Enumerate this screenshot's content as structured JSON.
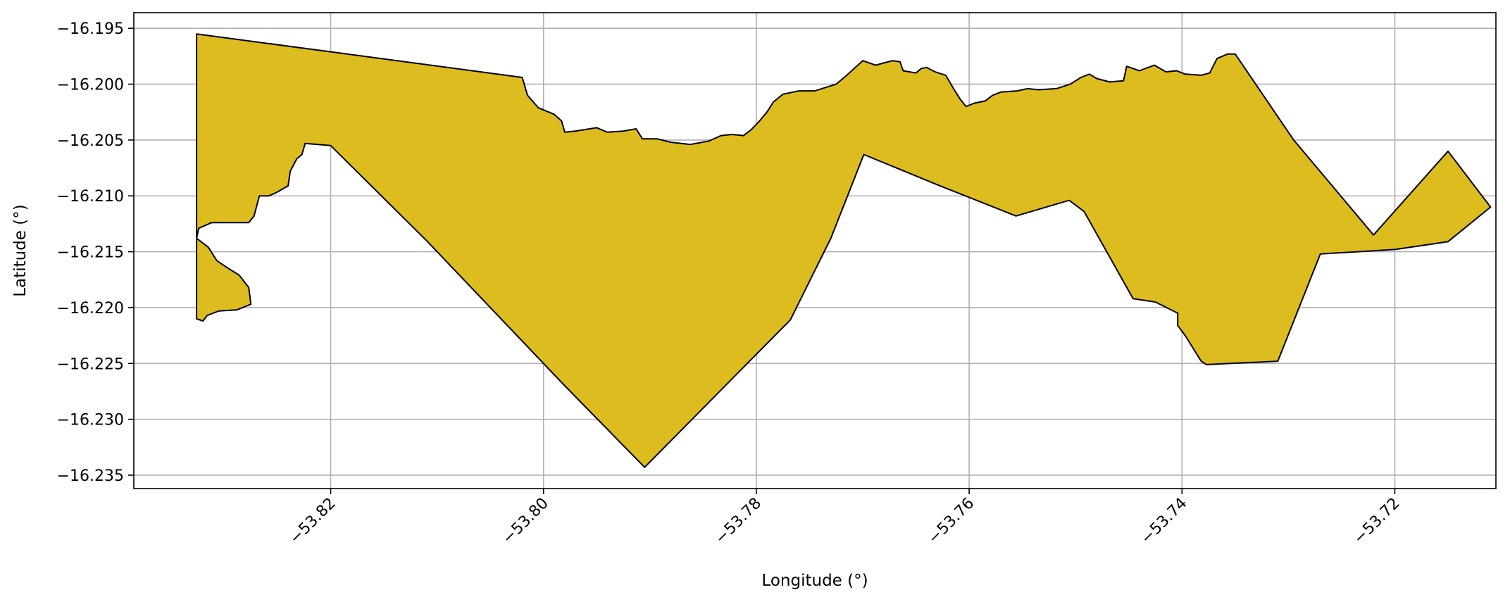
{
  "chart_data": {
    "type": "area",
    "title": "",
    "xlabel": "Longitude (°)",
    "ylabel": "Latitude (°)",
    "xlim": [
      -53.8385,
      -53.7105
    ],
    "ylim": [
      -16.2362,
      -16.1936
    ],
    "xticks": [
      -53.82,
      -53.8,
      -53.78,
      -53.76,
      -53.74,
      -53.72
    ],
    "xtick_labels": [
      "−53.82",
      "−53.80",
      "−53.78",
      "−53.76",
      "−53.74",
      "−53.72"
    ],
    "yticks": [
      -16.195,
      -16.2,
      -16.205,
      -16.21,
      -16.215,
      -16.22,
      -16.225,
      -16.23,
      -16.235
    ],
    "ytick_labels": [
      "−16.195",
      "−16.200",
      "−16.205",
      "−16.210",
      "−16.215",
      "−16.220",
      "−16.225",
      "−16.230",
      "−16.235"
    ],
    "grid": true,
    "fill_color": "#DDBC20",
    "edge_color": "#000000",
    "polygon": [
      [
        -53.8326,
        -16.1955
      ],
      [
        -53.802,
        -16.1994
      ],
      [
        -53.8015,
        -16.201
      ],
      [
        -53.8005,
        -16.2021
      ],
      [
        -53.799,
        -16.2027
      ],
      [
        -53.7983,
        -16.2033
      ],
      [
        -53.798,
        -16.2043
      ],
      [
        -53.797,
        -16.2042
      ],
      [
        -53.795,
        -16.2039
      ],
      [
        -53.794,
        -16.2043
      ],
      [
        -53.7925,
        -16.2042
      ],
      [
        -53.7913,
        -16.204
      ],
      [
        -53.7907,
        -16.2049
      ],
      [
        -53.7893,
        -16.2049
      ],
      [
        -53.788,
        -16.2052
      ],
      [
        -53.7862,
        -16.2054
      ],
      [
        -53.7845,
        -16.2051
      ],
      [
        -53.7833,
        -16.2046
      ],
      [
        -53.7823,
        -16.2045
      ],
      [
        -53.7812,
        -16.2046
      ],
      [
        -53.7805,
        -16.2041
      ],
      [
        -53.7797,
        -16.2033
      ],
      [
        -53.779,
        -16.2025
      ],
      [
        -53.7784,
        -16.2016
      ],
      [
        -53.7775,
        -16.2009
      ],
      [
        -53.776,
        -16.2006
      ],
      [
        -53.7745,
        -16.2006
      ],
      [
        -53.7725,
        -16.2
      ],
      [
        -53.7715,
        -16.1992
      ],
      [
        -53.7707,
        -16.1985
      ],
      [
        -53.77,
        -16.1979
      ],
      [
        -53.7688,
        -16.1983
      ],
      [
        -53.768,
        -16.1981
      ],
      [
        -53.7672,
        -16.1979
      ],
      [
        -53.7665,
        -16.198
      ],
      [
        -53.7662,
        -16.1988
      ],
      [
        -53.765,
        -16.199
      ],
      [
        -53.7645,
        -16.1986
      ],
      [
        -53.764,
        -16.1985
      ],
      [
        -53.7632,
        -16.1989
      ],
      [
        -53.7622,
        -16.1992
      ],
      [
        -53.7614,
        -16.2005
      ],
      [
        -53.7608,
        -16.2014
      ],
      [
        -53.7603,
        -16.202
      ],
      [
        -53.7595,
        -16.2017
      ],
      [
        -53.7585,
        -16.2015
      ],
      [
        -53.7578,
        -16.201
      ],
      [
        -53.757,
        -16.2007
      ],
      [
        -53.7555,
        -16.2006
      ],
      [
        -53.7545,
        -16.2004
      ],
      [
        -53.7535,
        -16.2005
      ],
      [
        -53.7518,
        -16.2004
      ],
      [
        -53.7505,
        -16.2
      ],
      [
        -53.7495,
        -16.1994
      ],
      [
        -53.7487,
        -16.1991
      ],
      [
        -53.748,
        -16.1995
      ],
      [
        -53.7468,
        -16.1998
      ],
      [
        -53.7455,
        -16.1997
      ],
      [
        -53.7452,
        -16.1984
      ],
      [
        -53.744,
        -16.1988
      ],
      [
        -53.7426,
        -16.1983
      ],
      [
        -53.7415,
        -16.1989
      ],
      [
        -53.7405,
        -16.1988
      ],
      [
        -53.7397,
        -16.1991
      ],
      [
        -53.7382,
        -16.1992
      ],
      [
        -53.7374,
        -16.199
      ],
      [
        -53.7367,
        -16.1977
      ],
      [
        -53.7357,
        -16.1973
      ],
      [
        -53.735,
        -16.1973
      ],
      [
        -53.7295,
        -16.205
      ],
      [
        -53.722,
        -16.2135
      ],
      [
        -53.715,
        -16.206
      ],
      [
        -53.711,
        -16.211
      ],
      [
        -53.715,
        -16.2141
      ],
      [
        -53.72,
        -16.2148
      ],
      [
        -53.727,
        -16.2152
      ],
      [
        -53.731,
        -16.2248
      ],
      [
        -53.7377,
        -16.2251
      ],
      [
        -53.7382,
        -16.2248
      ],
      [
        -53.7397,
        -16.2225
      ],
      [
        -53.7404,
        -16.2216
      ],
      [
        -53.7404,
        -16.2205
      ],
      [
        -53.7425,
        -16.2195
      ],
      [
        -53.7446,
        -16.2192
      ],
      [
        -53.7492,
        -16.2114
      ],
      [
        -53.7506,
        -16.2104
      ],
      [
        -53.7556,
        -16.2118
      ],
      [
        -53.763,
        -16.209
      ],
      [
        -53.7699,
        -16.2063
      ],
      [
        -53.773,
        -16.2138
      ],
      [
        -53.7768,
        -16.2211
      ],
      [
        -53.7905,
        -16.2343
      ],
      [
        -53.798,
        -16.227
      ],
      [
        -53.8035,
        -16.2215
      ],
      [
        -53.811,
        -16.214
      ],
      [
        -53.82,
        -16.2055
      ],
      [
        -53.8224,
        -16.2053
      ],
      [
        -53.8227,
        -16.2063
      ],
      [
        -53.8232,
        -16.2067
      ],
      [
        -53.8238,
        -16.2078
      ],
      [
        -53.824,
        -16.2091
      ],
      [
        -53.8251,
        -16.2097
      ],
      [
        -53.8258,
        -16.21
      ],
      [
        -53.8267,
        -16.21
      ],
      [
        -53.8272,
        -16.2118
      ],
      [
        -53.8277,
        -16.2124
      ],
      [
        -53.8287,
        -16.2124
      ],
      [
        -53.83,
        -16.2124
      ],
      [
        -53.8312,
        -16.2124
      ],
      [
        -53.8324,
        -16.2129
      ],
      [
        -53.8326,
        -16.2138
      ],
      [
        -53.8315,
        -16.2146
      ],
      [
        -53.8307,
        -16.2158
      ],
      [
        -53.8296,
        -16.2165
      ],
      [
        -53.8286,
        -16.2171
      ],
      [
        -53.8277,
        -16.2182
      ],
      [
        -53.8275,
        -16.2197
      ],
      [
        -53.8288,
        -16.2202
      ],
      [
        -53.8305,
        -16.2203
      ],
      [
        -53.8316,
        -16.2207
      ],
      [
        -53.832,
        -16.2212
      ],
      [
        -53.8326,
        -16.221
      ]
    ]
  }
}
